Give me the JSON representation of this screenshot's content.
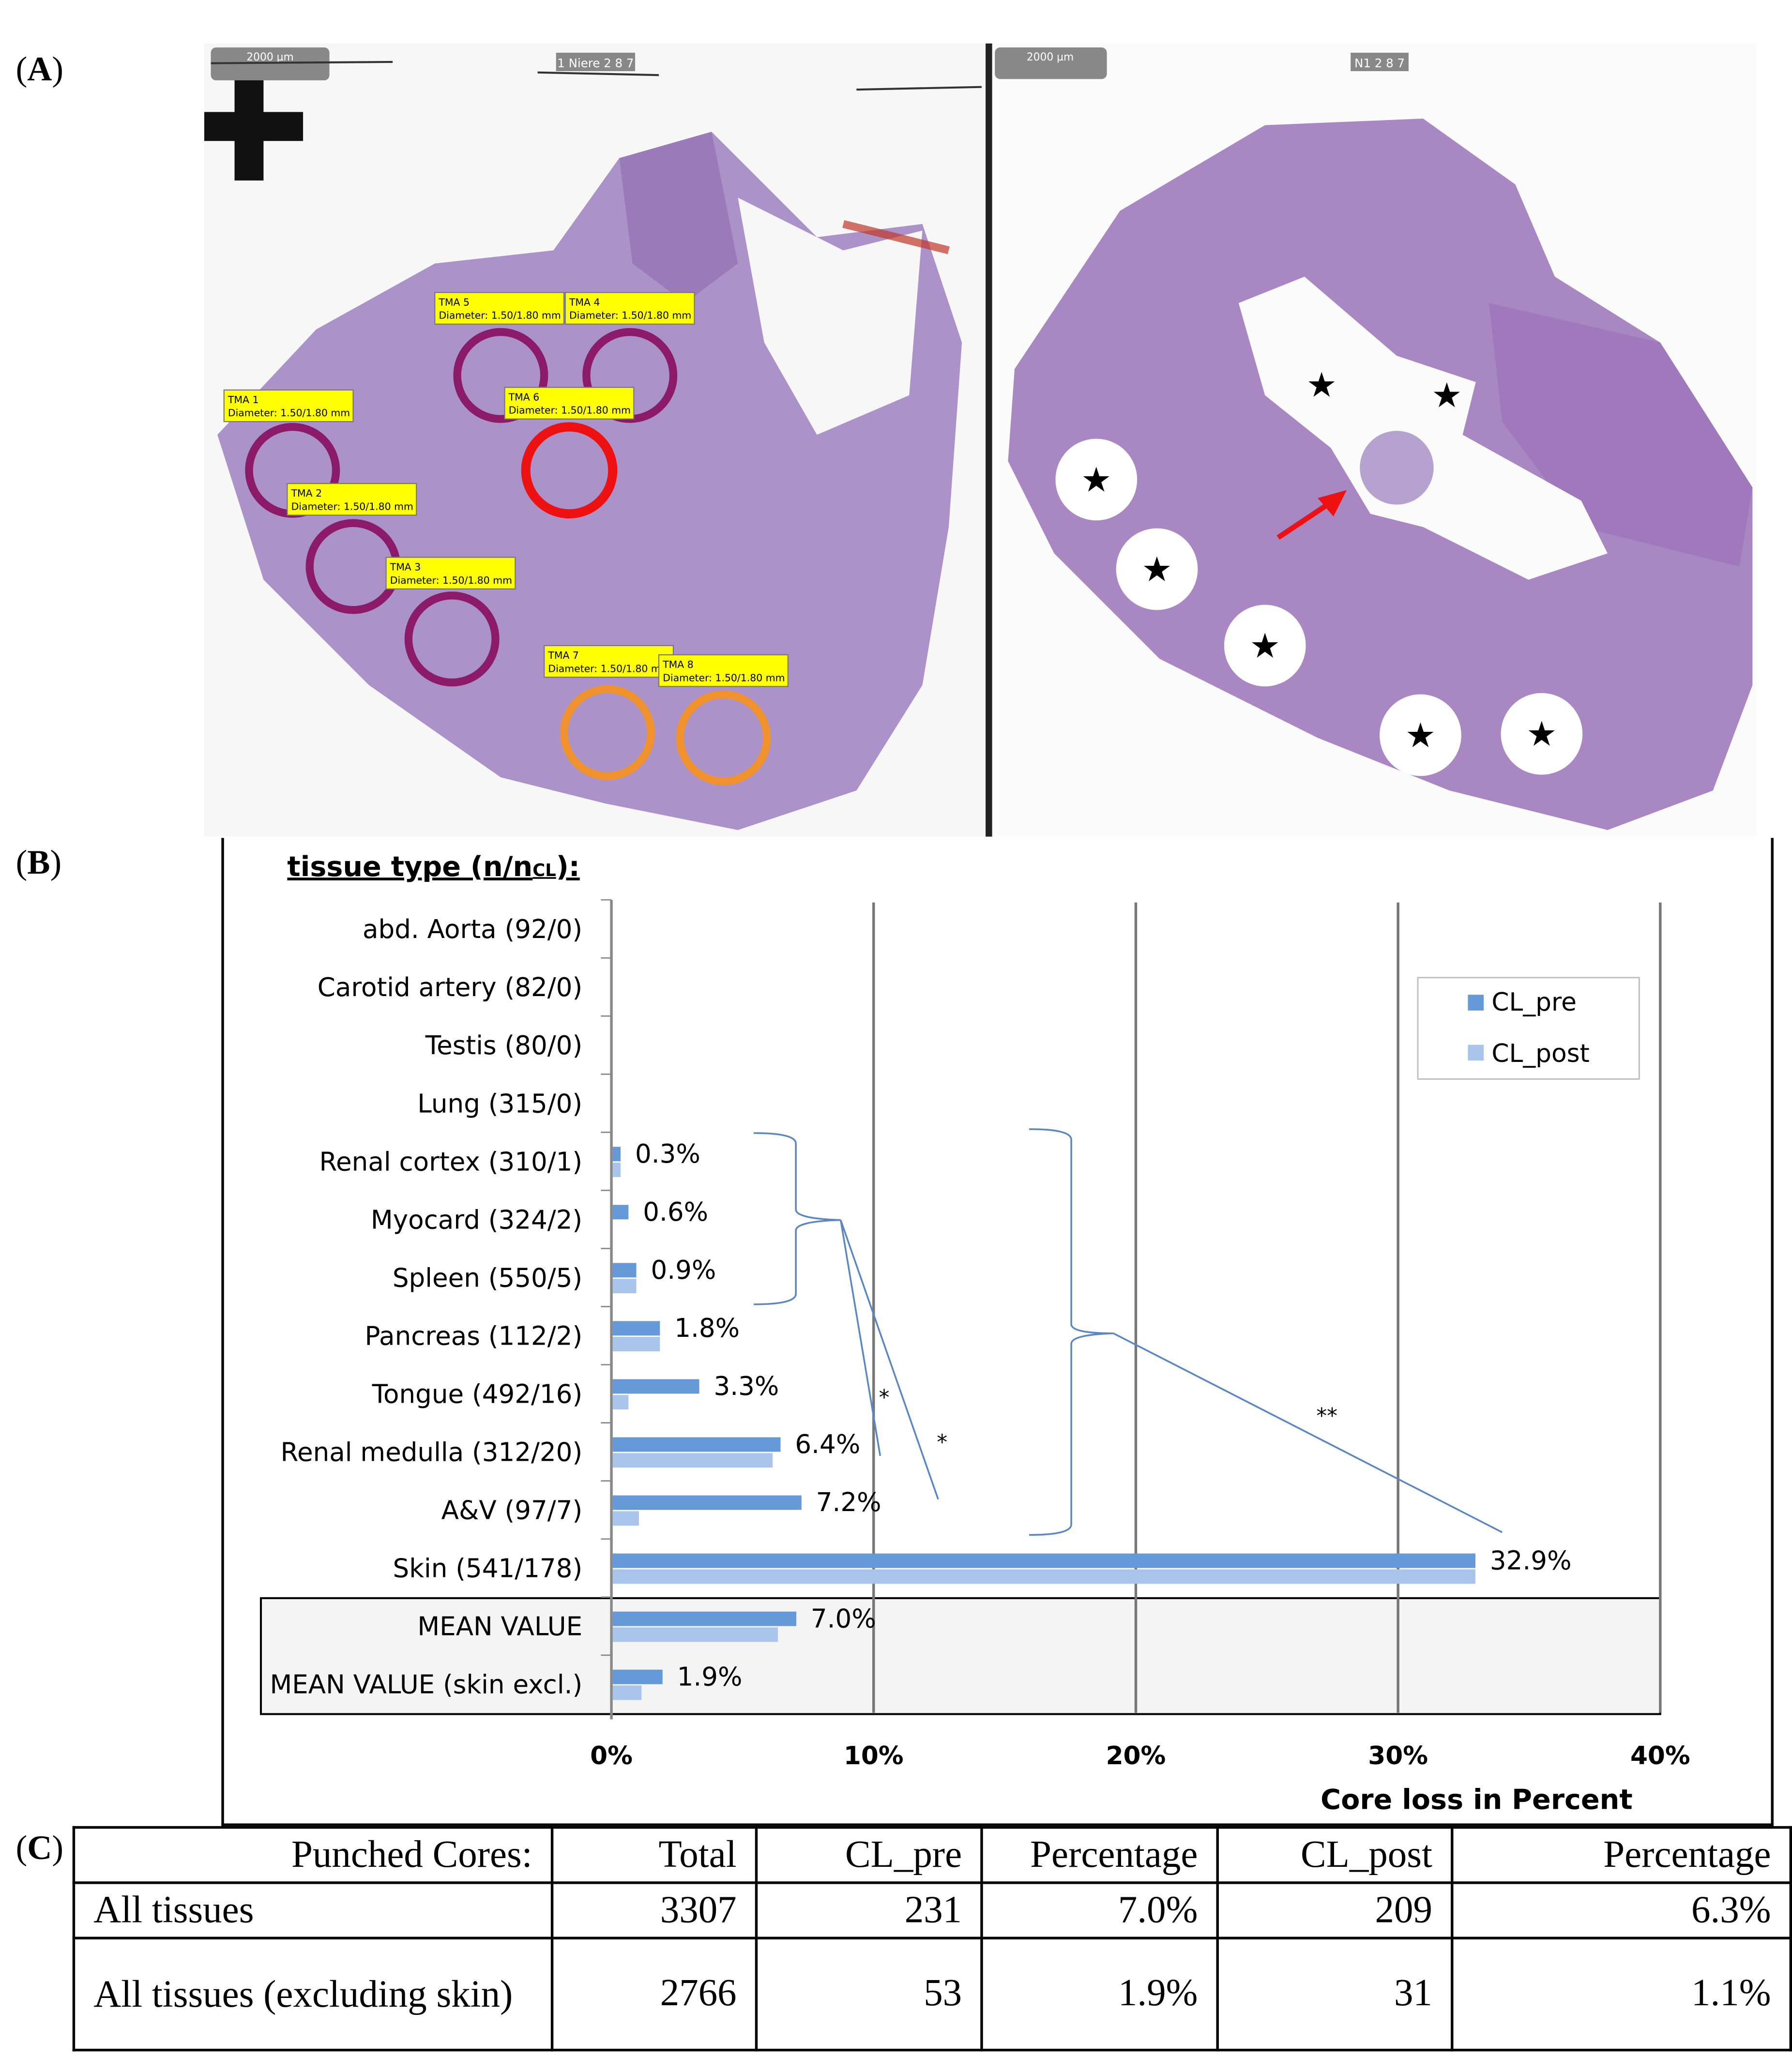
{
  "panel_labels": {
    "a": "A",
    "b": "B",
    "c": "C"
  },
  "panel_a": {
    "left_image": {
      "scale_bar": "2000 µm",
      "slide_label": "1 Niere 2 8 7",
      "tma_labels": [
        {
          "title": "TMA 5",
          "diameter": "Diameter: 1.50/1.80 mm",
          "status": "intact"
        },
        {
          "title": "TMA 4",
          "diameter": "Diameter: 1.50/1.80 mm",
          "status": "intact"
        },
        {
          "title": "TMA 1",
          "diameter": "Diameter: 1.50/1.80 mm",
          "status": "intact"
        },
        {
          "title": "TMA 6",
          "diameter": "Diameter: 1.50/1.80 mm",
          "status": "highlighted"
        },
        {
          "title": "TMA 2",
          "diameter": "Diameter: 1.50/1.80 mm",
          "status": "intact"
        },
        {
          "title": "TMA 3",
          "diameter": "Diameter: 1.50/1.80 mm",
          "status": "intact"
        },
        {
          "title": "TMA 7",
          "diameter": "Diameter: 1.50/1.80 mm",
          "status": "orange"
        },
        {
          "title": "TMA 8",
          "diameter": "Diameter: 1.50/1.80 mm",
          "status": "orange"
        }
      ]
    },
    "right_image": {
      "scale_bar": "2000 µm",
      "slide_label": "N1 2 8 7",
      "star_symbol": "★",
      "star_count": 7
    },
    "colors": {
      "tissue": "#a88bc4",
      "tissue_dark": "#8c5fa8",
      "circle": "#8b1a6b",
      "circle_red": "#ee1111",
      "circle_orange": "#f0922e",
      "label_bg": "#ffff00"
    }
  },
  "chart_data": {
    "type": "bar",
    "orientation": "horizontal",
    "title": "tissue type (n/n",
    "title_sub": "CL",
    "title_end": "):",
    "xlabel": "Core loss in Percent",
    "xlim": [
      0,
      40
    ],
    "xticks": [
      "0%",
      "10%",
      "20%",
      "30%",
      "40%"
    ],
    "grid": true,
    "legend_position": "right",
    "categories": [
      "abd. Aorta (92/0)",
      "Carotid artery (82/0)",
      "Testis (80/0)",
      "Lung (315/0)",
      "Renal cortex (310/1)",
      "Myocard (324/2)",
      "Spleen (550/5)",
      "Pancreas (112/2)",
      "Tongue (492/16)",
      "Renal medulla (312/20)",
      "A&V (97/7)",
      "Skin (541/178)",
      "MEAN VALUE",
      "MEAN VALUE (skin excl.)"
    ],
    "series": [
      {
        "name": "CL_pre",
        "color": "#6699d8",
        "values": [
          0,
          0,
          0,
          0,
          0.3,
          0.6,
          0.9,
          1.8,
          3.3,
          6.4,
          7.2,
          32.9,
          7.0,
          1.9
        ]
      },
      {
        "name": "CL_post",
        "color": "#a9c5eb",
        "values": [
          0,
          0,
          0,
          0,
          0.3,
          0,
          0.9,
          1.8,
          0.6,
          6.1,
          1.0,
          32.9,
          6.3,
          1.1
        ]
      }
    ],
    "data_labels": [
      "",
      "",
      "",
      "",
      "0.3%",
      "0.6%",
      "0.9%",
      "1.8%",
      "3.3%",
      "6.4%",
      "7.2%",
      "32.9%",
      "7.0%",
      "1.9%"
    ],
    "annotations": [
      "*",
      "*",
      "**"
    ]
  },
  "table": {
    "headers": [
      "Punched Cores:",
      "Total",
      "CL_pre",
      "Percentage",
      "CL_post",
      "Percentage"
    ],
    "rows": [
      [
        "All tissues",
        "3307",
        "231",
        "7.0%",
        "209",
        "6.3%"
      ],
      [
        "All tissues (excluding skin)",
        "2766",
        "53",
        "1.9%",
        "31",
        "1.1%"
      ]
    ]
  }
}
